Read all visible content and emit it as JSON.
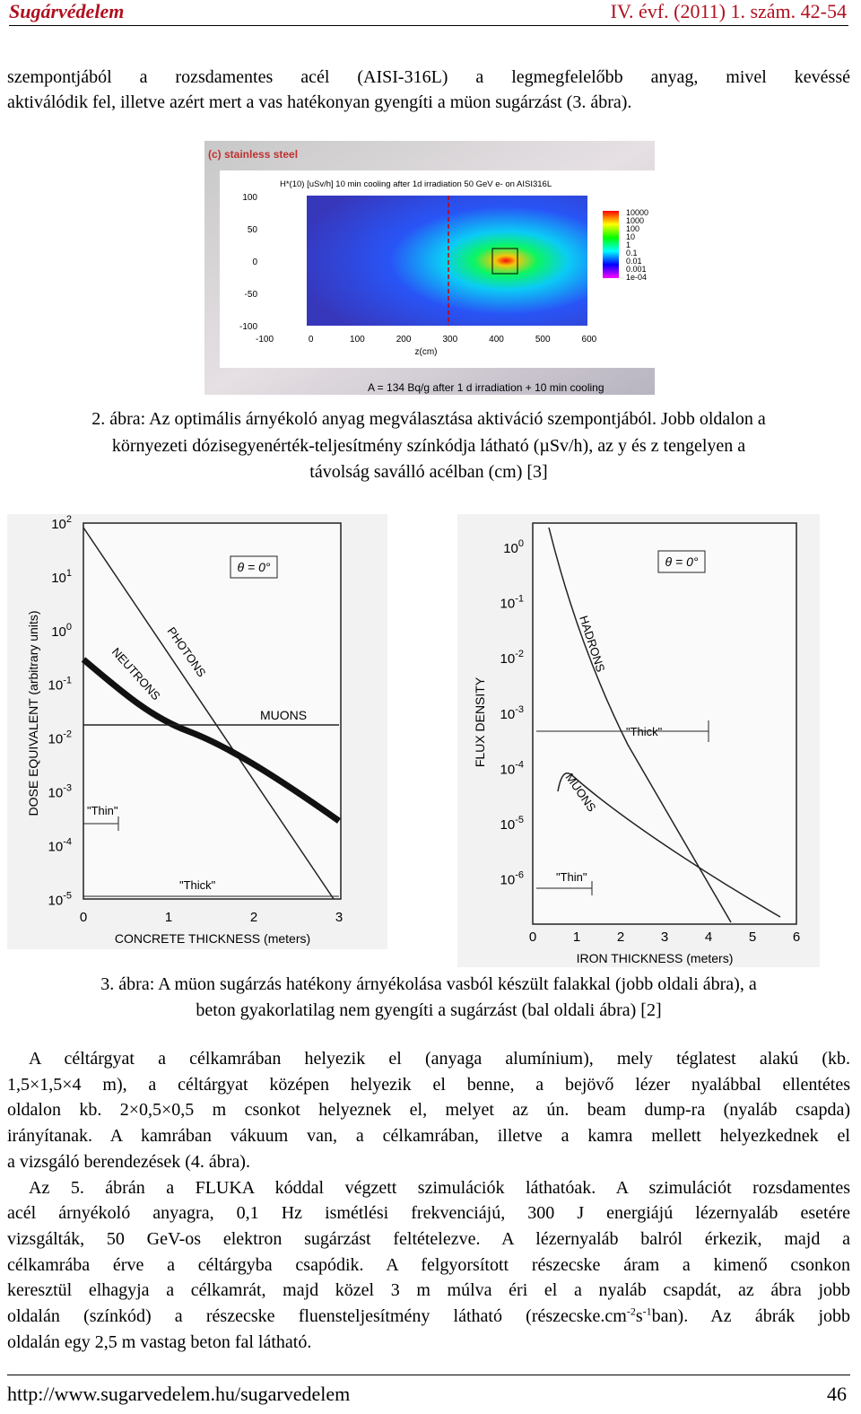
{
  "header": {
    "journal": "Sugárvédelem",
    "issue": "IV. évf. (2011) 1. szám. 42-54"
  },
  "intro": {
    "lines": [
      "szempontjából a rozsdamentes acél (AISI-316L) a legmegfelelőbb anyag, mivel kevéssé",
      "aktiválódik fel, illetve azért mert a vas hatékonyan gyengíti a müon sugárzást (3. ábra)."
    ]
  },
  "figure2": {
    "panel": "(c) stainless steel",
    "plot_title": "H*(10) [uSv/h] 10 min cooling after 1d irradiation  50 GeV e- on AISI316L",
    "yticks": [
      "100",
      "50",
      "0",
      "-50",
      "-100"
    ],
    "xticks": [
      "-100",
      "0",
      "100",
      "200",
      "300",
      "400",
      "500",
      "600"
    ],
    "xlabel": "z(cm)",
    "colorbar": [
      "10000",
      "1000",
      "100",
      "10",
      "1",
      "0.1",
      "0.01",
      "0.001",
      "1e-04"
    ],
    "footer": "A  = 134 Bq/g after 1 d irradiation + 10 min cooling",
    "caption": [
      "2. ábra: Az optimális árnyékoló anyag megválasztása aktiváció szempontjából. Jobb oldalon a",
      "környezeti dózisegyenérték-teljesítmény színkódja látható (µSv/h), az y és z tengelyen a",
      "távolság saválló acélban (cm) [3]"
    ]
  },
  "figure3": {
    "left": {
      "base": "10",
      "yexp": [
        "2",
        "1",
        "0",
        "-1",
        "-2",
        "-3",
        "-4",
        "-5"
      ],
      "ylabel": "DOSE EQUIVALENT (arbitrary units)",
      "xticks": [
        "0",
        "1",
        "2",
        "3"
      ],
      "xlabel": "CONCRETE THICKNESS (meters)",
      "angle": "θ = 0°",
      "photons": "PHOTONS",
      "neutrons": "NEUTRONS",
      "muons": "MUONS",
      "thin": "\"Thin\"",
      "thick": "\"Thick\""
    },
    "right": {
      "base": "10",
      "yexp": [
        "0",
        "-1",
        "-2",
        "-3",
        "-4",
        "-5",
        "-6"
      ],
      "ylabel": "FLUX DENSITY",
      "xticks": [
        "0",
        "1",
        "2",
        "3",
        "4",
        "5",
        "6"
      ],
      "xlabel": "IRON THICKNESS (meters)",
      "angle": "θ = 0°",
      "hadrons": "HADRONS",
      "muons": "MUONS",
      "thick": "\"Thick\"",
      "thin": "\"Thin\""
    },
    "caption": [
      "3. ábra: A müon sugárzás hatékony árnyékolása vasból készült falakkal (jobb oldali ábra), a",
      "beton gyakorlatilag nem gyengíti a sugárzást (bal oldali ábra) [2]"
    ]
  },
  "body": {
    "paragraph1": [
      "A céltárgyat a célkamrában helyezik el (anyaga alumínium), mely téglatest alakú (kb.",
      "1,5×1,5×4 m), a céltárgyat középen helyezik el benne, a bejövő lézer nyalábbal ellentétes",
      "oldalon kb. 2×0,5×0,5 m csonkot helyeznek el, melyet az ún. beam dump-ra (nyaláb csapda)",
      "irányítanak. A kamrában vákuum van, a célkamrában, illetve a kamra mellett helyezkednek el",
      "a vizsgáló berendezések (4. ábra)."
    ],
    "paragraph2": [
      "Az 5. ábrán a FLUKA kóddal végzett szimulációk láthatóak. A szimulációt rozsdamentes",
      "acél árnyékoló anyagra, 0,1 Hz ismétlési frekvenciájú, 300 J energiájú lézernyaláb esetére",
      "vizsgálták, 50 GeV-os elektron sugárzást feltételezve. A lézernyaláb balról érkezik, majd a",
      "célkamrába érve a céltárgyba csapódik. A felgyorsított részecske áram a kimenő csonkon",
      "keresztül elhagyja a célkamrát, majd közel 3 m múlva éri el a nyaláb csapdát, az ábra jobb",
      [
        "oldalán (színkód) a részecske fluensteljesítmény látható (részecske.cm",
        "-2",
        "s",
        "-1",
        "ban). Az ábrák jobb"
      ],
      "oldalán egy 2,5 m vastag beton fal látható."
    ]
  },
  "footer": {
    "url": "http://www.sugarvedelem.hu/sugarvedelem",
    "page": "46"
  }
}
